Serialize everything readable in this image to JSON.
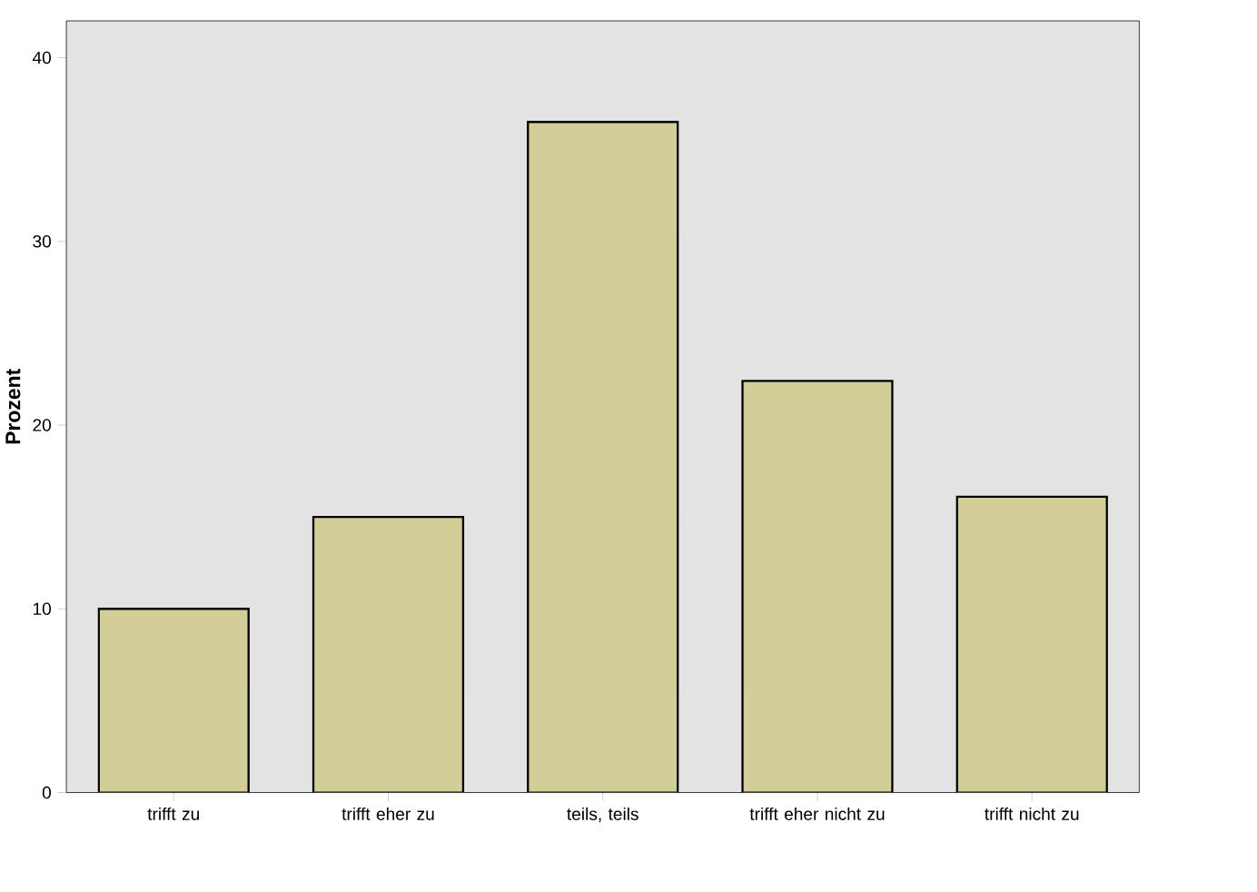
{
  "chart_data": {
    "type": "bar",
    "ylabel": "Prozent",
    "categories": [
      "trifft zu",
      "trifft eher zu",
      "teils, teils",
      "trifft eher nicht zu",
      "trifft nicht zu"
    ],
    "values": [
      10.0,
      15.0,
      36.5,
      22.4,
      16.1
    ],
    "color": "#d3ce97",
    "ylim": [
      0,
      42
    ],
    "yticks": [
      0,
      10,
      20,
      30,
      40
    ],
    "grid": false
  }
}
